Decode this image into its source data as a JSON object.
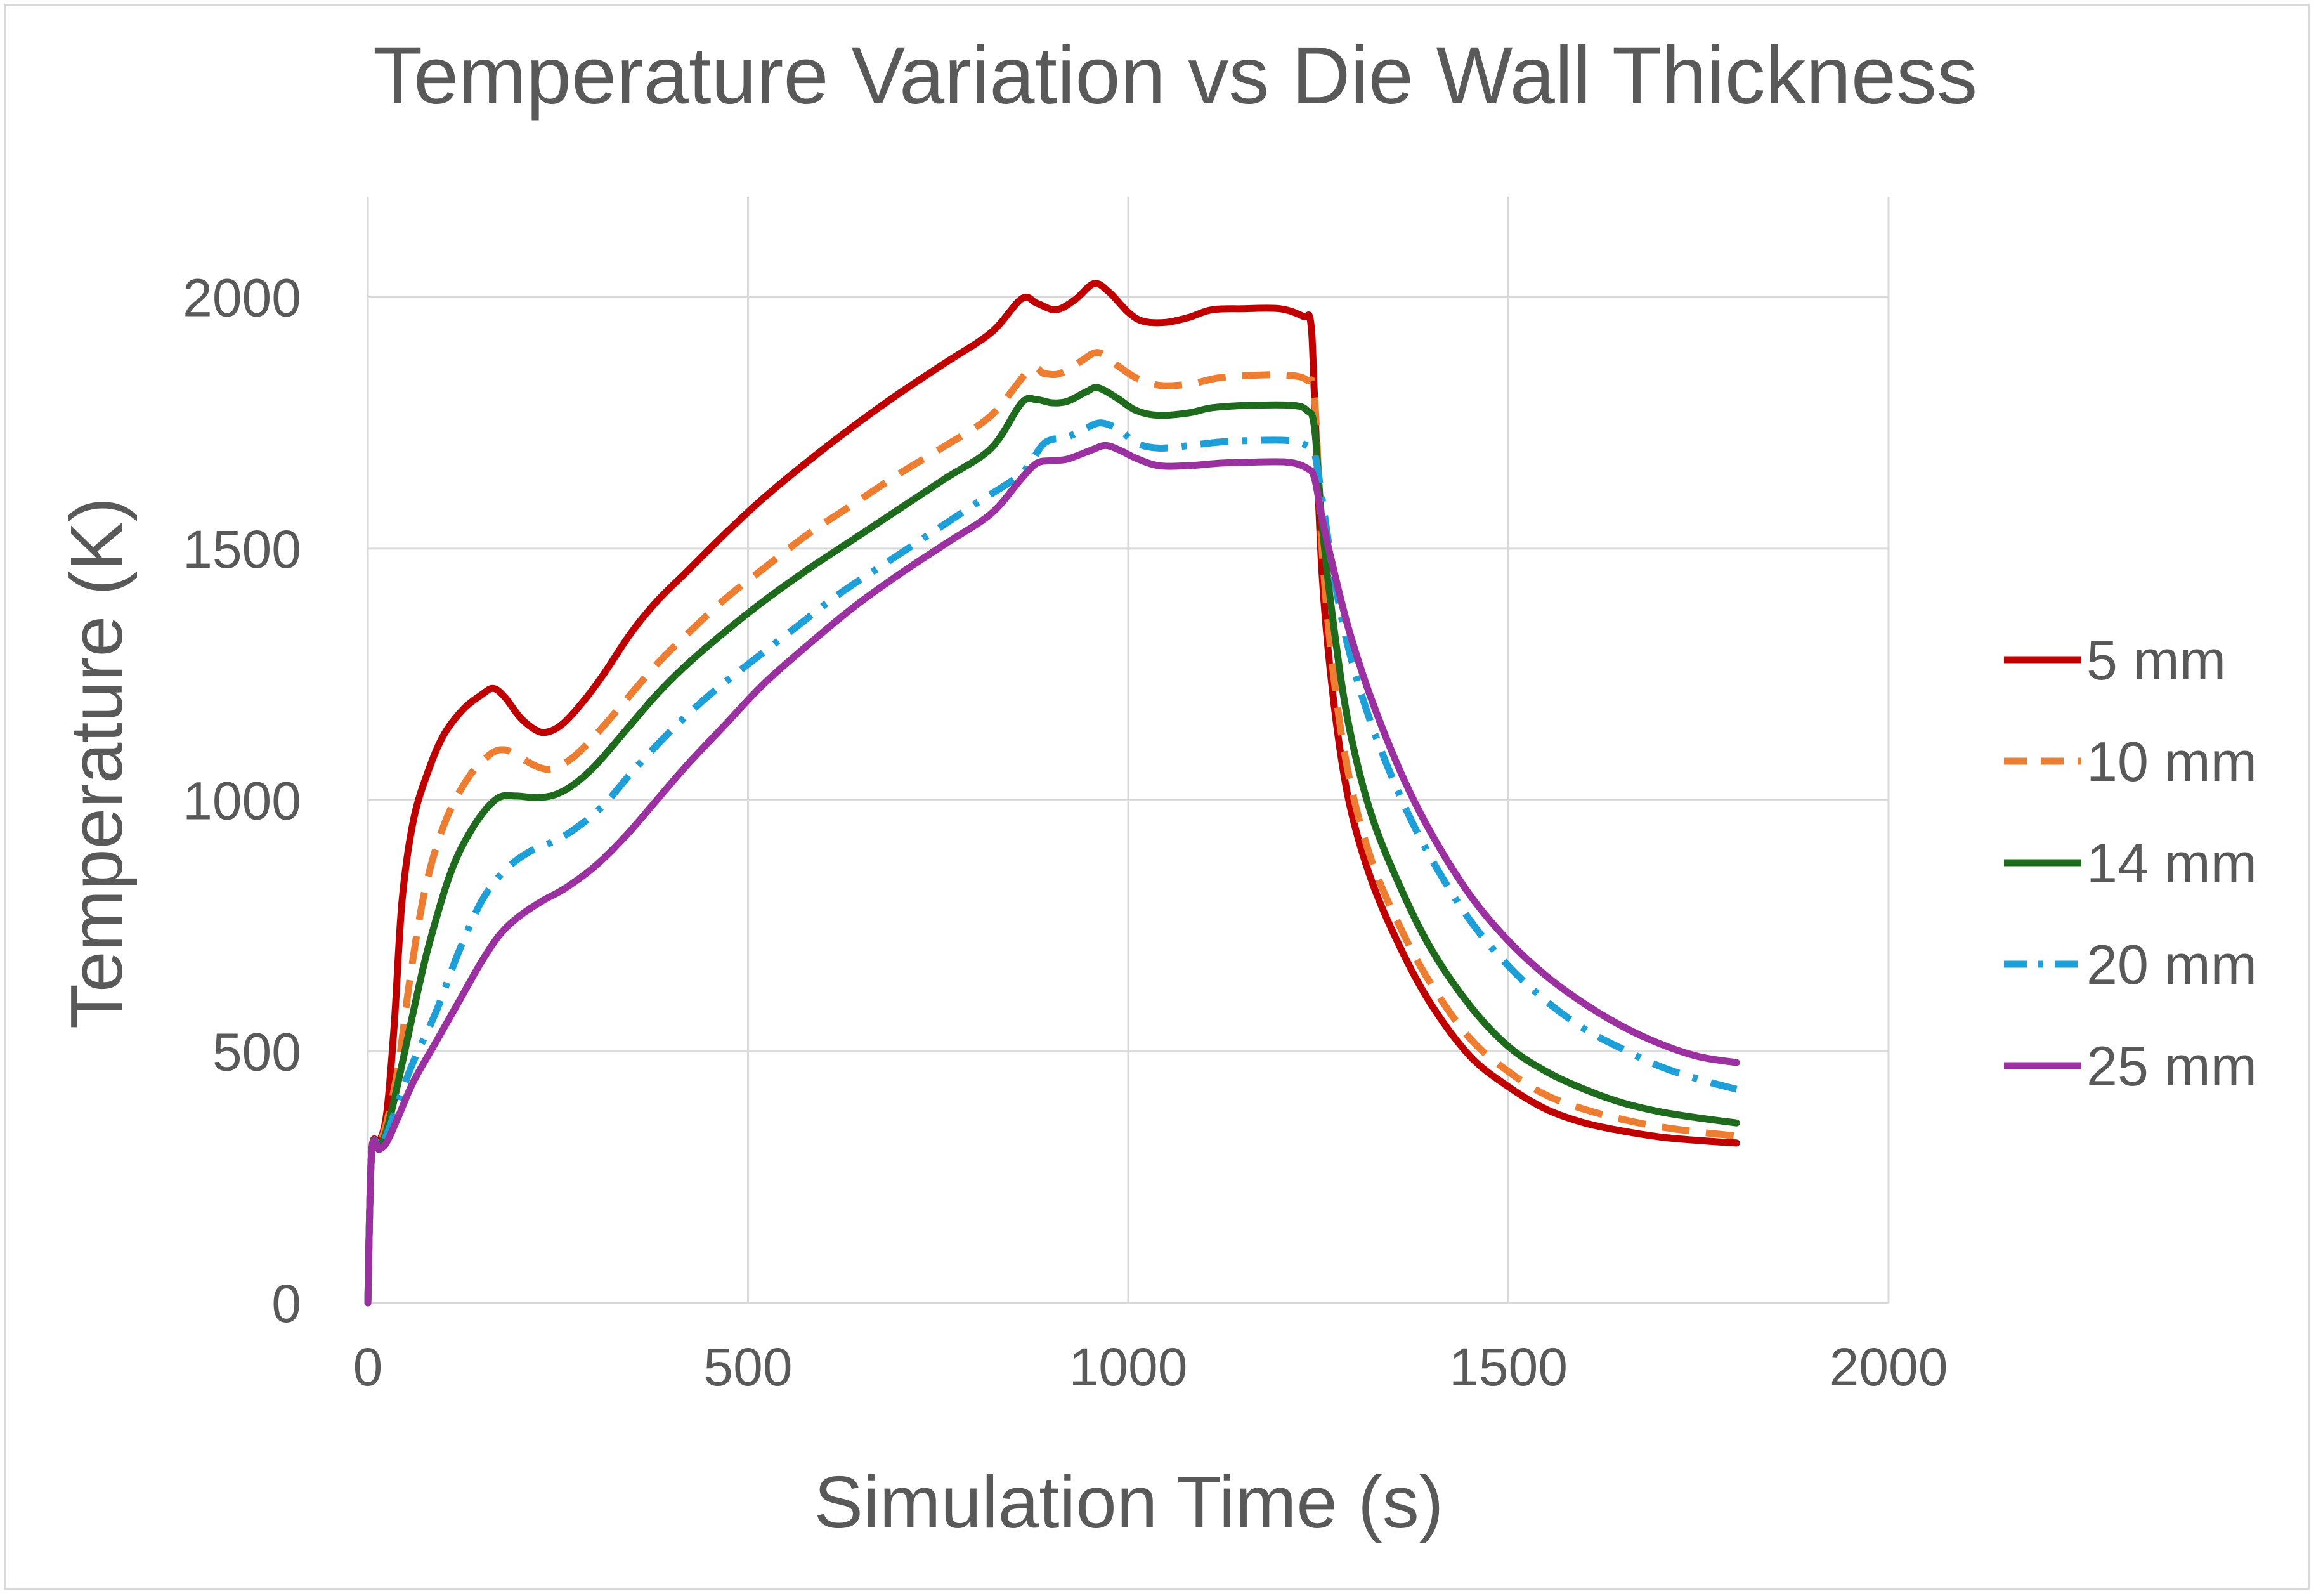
{
  "chart_data": {
    "type": "line",
    "title": "Temperature Variation vs Die Wall Thickness",
    "xlabel": "Simulation Time (s)",
    "ylabel": "Temperature (K)",
    "xlim": [
      0,
      2000
    ],
    "ylim": [
      0,
      2200
    ],
    "xticks": [
      0,
      500,
      1000,
      1500,
      2000
    ],
    "yticks": [
      0,
      500,
      1000,
      1500,
      2000
    ],
    "grid": true,
    "legend_position": "right",
    "series": [
      {
        "name": "5 mm",
        "color": "#c00000",
        "dash": "solid",
        "points": [
          [
            0,
            0
          ],
          [
            5,
            300
          ],
          [
            15,
            320
          ],
          [
            25,
            380
          ],
          [
            35,
            560
          ],
          [
            45,
            800
          ],
          [
            60,
            960
          ],
          [
            80,
            1060
          ],
          [
            100,
            1130
          ],
          [
            125,
            1180
          ],
          [
            150,
            1210
          ],
          [
            165,
            1222
          ],
          [
            180,
            1205
          ],
          [
            200,
            1165
          ],
          [
            220,
            1140
          ],
          [
            235,
            1135
          ],
          [
            255,
            1150
          ],
          [
            280,
            1190
          ],
          [
            310,
            1250
          ],
          [
            345,
            1330
          ],
          [
            380,
            1395
          ],
          [
            420,
            1455
          ],
          [
            470,
            1530
          ],
          [
            520,
            1600
          ],
          [
            580,
            1675
          ],
          [
            640,
            1745
          ],
          [
            700,
            1810
          ],
          [
            760,
            1870
          ],
          [
            820,
            1930
          ],
          [
            860,
            1997
          ],
          [
            880,
            1988
          ],
          [
            905,
            1975
          ],
          [
            930,
            1995
          ],
          [
            955,
            2027
          ],
          [
            975,
            2010
          ],
          [
            1000,
            1970
          ],
          [
            1020,
            1952
          ],
          [
            1050,
            1950
          ],
          [
            1080,
            1960
          ],
          [
            1110,
            1975
          ],
          [
            1150,
            1977
          ],
          [
            1200,
            1977
          ],
          [
            1230,
            1962
          ],
          [
            1240,
            1950
          ],
          [
            1245,
            1800
          ],
          [
            1255,
            1450
          ],
          [
            1270,
            1200
          ],
          [
            1290,
            1000
          ],
          [
            1320,
            840
          ],
          [
            1360,
            700
          ],
          [
            1400,
            590
          ],
          [
            1450,
            490
          ],
          [
            1500,
            430
          ],
          [
            1550,
            385
          ],
          [
            1600,
            358
          ],
          [
            1650,
            342
          ],
          [
            1700,
            330
          ],
          [
            1750,
            323
          ],
          [
            1800,
            318
          ]
        ]
      },
      {
        "name": "10 mm",
        "color": "#ed7d31",
        "dash": "dashed",
        "points": [
          [
            0,
            0
          ],
          [
            5,
            300
          ],
          [
            15,
            318
          ],
          [
            25,
            360
          ],
          [
            40,
            470
          ],
          [
            55,
            640
          ],
          [
            75,
            820
          ],
          [
            100,
            950
          ],
          [
            130,
            1040
          ],
          [
            160,
            1090
          ],
          [
            180,
            1100
          ],
          [
            200,
            1085
          ],
          [
            225,
            1065
          ],
          [
            245,
            1063
          ],
          [
            270,
            1085
          ],
          [
            300,
            1130
          ],
          [
            340,
            1200
          ],
          [
            380,
            1270
          ],
          [
            420,
            1330
          ],
          [
            470,
            1400
          ],
          [
            520,
            1460
          ],
          [
            580,
            1530
          ],
          [
            640,
            1590
          ],
          [
            700,
            1650
          ],
          [
            760,
            1705
          ],
          [
            820,
            1765
          ],
          [
            870,
            1855
          ],
          [
            890,
            1848
          ],
          [
            910,
            1848
          ],
          [
            935,
            1870
          ],
          [
            960,
            1890
          ],
          [
            985,
            1865
          ],
          [
            1010,
            1840
          ],
          [
            1040,
            1825
          ],
          [
            1080,
            1827
          ],
          [
            1120,
            1840
          ],
          [
            1170,
            1845
          ],
          [
            1210,
            1845
          ],
          [
            1235,
            1835
          ],
          [
            1245,
            1800
          ],
          [
            1255,
            1500
          ],
          [
            1270,
            1250
          ],
          [
            1290,
            1050
          ],
          [
            1320,
            880
          ],
          [
            1360,
            740
          ],
          [
            1400,
            630
          ],
          [
            1450,
            525
          ],
          [
            1500,
            460
          ],
          [
            1550,
            413
          ],
          [
            1600,
            385
          ],
          [
            1650,
            365
          ],
          [
            1700,
            350
          ],
          [
            1750,
            340
          ],
          [
            1800,
            332
          ]
        ]
      },
      {
        "name": "14 mm",
        "color": "#1e6b1e",
        "dash": "solid",
        "points": [
          [
            0,
            0
          ],
          [
            5,
            300
          ],
          [
            15,
            312
          ],
          [
            25,
            345
          ],
          [
            40,
            440
          ],
          [
            60,
            580
          ],
          [
            80,
            710
          ],
          [
            110,
            860
          ],
          [
            140,
            950
          ],
          [
            170,
            1003
          ],
          [
            195,
            1008
          ],
          [
            220,
            1005
          ],
          [
            245,
            1010
          ],
          [
            270,
            1030
          ],
          [
            300,
            1070
          ],
          [
            340,
            1140
          ],
          [
            380,
            1210
          ],
          [
            420,
            1270
          ],
          [
            470,
            1335
          ],
          [
            520,
            1395
          ],
          [
            580,
            1460
          ],
          [
            640,
            1520
          ],
          [
            700,
            1580
          ],
          [
            760,
            1640
          ],
          [
            820,
            1700
          ],
          [
            860,
            1790
          ],
          [
            880,
            1796
          ],
          [
            900,
            1790
          ],
          [
            920,
            1793
          ],
          [
            945,
            1812
          ],
          [
            960,
            1820
          ],
          [
            985,
            1800
          ],
          [
            1010,
            1775
          ],
          [
            1040,
            1765
          ],
          [
            1080,
            1770
          ],
          [
            1110,
            1780
          ],
          [
            1160,
            1785
          ],
          [
            1215,
            1785
          ],
          [
            1235,
            1775
          ],
          [
            1245,
            1740
          ],
          [
            1255,
            1550
          ],
          [
            1270,
            1350
          ],
          [
            1290,
            1150
          ],
          [
            1320,
            970
          ],
          [
            1360,
            820
          ],
          [
            1400,
            700
          ],
          [
            1450,
            590
          ],
          [
            1500,
            510
          ],
          [
            1550,
            460
          ],
          [
            1600,
            425
          ],
          [
            1650,
            398
          ],
          [
            1700,
            380
          ],
          [
            1750,
            368
          ],
          [
            1800,
            358
          ]
        ]
      },
      {
        "name": "20 mm",
        "color": "#1f9fd8",
        "dash": "dashdot",
        "points": [
          [
            0,
            0
          ],
          [
            5,
            300
          ],
          [
            15,
            310
          ],
          [
            25,
            335
          ],
          [
            40,
            400
          ],
          [
            60,
            480
          ],
          [
            90,
            580
          ],
          [
            120,
            700
          ],
          [
            150,
            800
          ],
          [
            180,
            860
          ],
          [
            210,
            895
          ],
          [
            240,
            915
          ],
          [
            270,
            940
          ],
          [
            310,
            990
          ],
          [
            350,
            1060
          ],
          [
            400,
            1140
          ],
          [
            450,
            1210
          ],
          [
            500,
            1270
          ],
          [
            560,
            1340
          ],
          [
            620,
            1410
          ],
          [
            680,
            1470
          ],
          [
            740,
            1530
          ],
          [
            800,
            1590
          ],
          [
            860,
            1650
          ],
          [
            890,
            1710
          ],
          [
            920,
            1722
          ],
          [
            945,
            1740
          ],
          [
            965,
            1750
          ],
          [
            990,
            1735
          ],
          [
            1010,
            1710
          ],
          [
            1040,
            1700
          ],
          [
            1080,
            1705
          ],
          [
            1120,
            1712
          ],
          [
            1160,
            1715
          ],
          [
            1210,
            1715
          ],
          [
            1235,
            1705
          ],
          [
            1245,
            1690
          ],
          [
            1255,
            1600
          ],
          [
            1270,
            1450
          ],
          [
            1290,
            1300
          ],
          [
            1320,
            1150
          ],
          [
            1360,
            1000
          ],
          [
            1400,
            880
          ],
          [
            1450,
            760
          ],
          [
            1500,
            670
          ],
          [
            1550,
            600
          ],
          [
            1600,
            545
          ],
          [
            1650,
            505
          ],
          [
            1700,
            470
          ],
          [
            1750,
            445
          ],
          [
            1800,
            425
          ]
        ]
      },
      {
        "name": "25 mm",
        "color": "#9b30a0",
        "dash": "solid",
        "points": [
          [
            0,
            0
          ],
          [
            5,
            300
          ],
          [
            15,
            305
          ],
          [
            25,
            320
          ],
          [
            40,
            370
          ],
          [
            60,
            440
          ],
          [
            90,
            520
          ],
          [
            120,
            600
          ],
          [
            150,
            680
          ],
          [
            175,
            735
          ],
          [
            200,
            770
          ],
          [
            230,
            800
          ],
          [
            260,
            825
          ],
          [
            300,
            870
          ],
          [
            340,
            930
          ],
          [
            380,
            1000
          ],
          [
            420,
            1070
          ],
          [
            470,
            1150
          ],
          [
            520,
            1230
          ],
          [
            580,
            1310
          ],
          [
            640,
            1385
          ],
          [
            700,
            1450
          ],
          [
            760,
            1510
          ],
          [
            820,
            1570
          ],
          [
            860,
            1640
          ],
          [
            880,
            1670
          ],
          [
            900,
            1675
          ],
          [
            920,
            1678
          ],
          [
            950,
            1695
          ],
          [
            970,
            1705
          ],
          [
            990,
            1695
          ],
          [
            1010,
            1680
          ],
          [
            1040,
            1665
          ],
          [
            1080,
            1665
          ],
          [
            1120,
            1670
          ],
          [
            1160,
            1672
          ],
          [
            1210,
            1672
          ],
          [
            1235,
            1660
          ],
          [
            1245,
            1640
          ],
          [
            1255,
            1560
          ],
          [
            1270,
            1460
          ],
          [
            1290,
            1340
          ],
          [
            1320,
            1200
          ],
          [
            1360,
            1050
          ],
          [
            1400,
            930
          ],
          [
            1450,
            810
          ],
          [
            1500,
            720
          ],
          [
            1550,
            650
          ],
          [
            1600,
            595
          ],
          [
            1650,
            550
          ],
          [
            1700,
            515
          ],
          [
            1750,
            490
          ],
          [
            1800,
            478
          ]
        ]
      }
    ]
  }
}
